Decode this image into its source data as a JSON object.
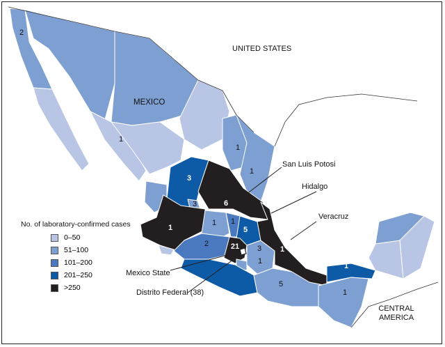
{
  "map": {
    "country_label": "MEXICO",
    "neighbors": {
      "north": "UNITED STATES",
      "south": "CENTRAL AMERICA"
    },
    "callouts": [
      "San Luis Potosi",
      "Hidalgo",
      "Veracruz",
      "Mexico State",
      "Distrito Federal (38)"
    ],
    "region_values": [
      "2",
      "1",
      "1",
      "1",
      "3",
      "3",
      "6",
      "1",
      "1",
      "5",
      "1",
      "2",
      "21",
      "3",
      "1",
      "1",
      "5",
      "1",
      "1"
    ]
  },
  "legend": {
    "title": "No. of laboratory-confirmed cases",
    "items": [
      {
        "label": "0–50",
        "color": "#b9c5e5"
      },
      {
        "label": "51–100",
        "color": "#7e9fd2"
      },
      {
        "label": "101–200",
        "color": "#4a79c0"
      },
      {
        "label": "201–250",
        "color": "#0d5aa7"
      },
      {
        "label": ">250",
        "color": "#231f20"
      }
    ]
  }
}
